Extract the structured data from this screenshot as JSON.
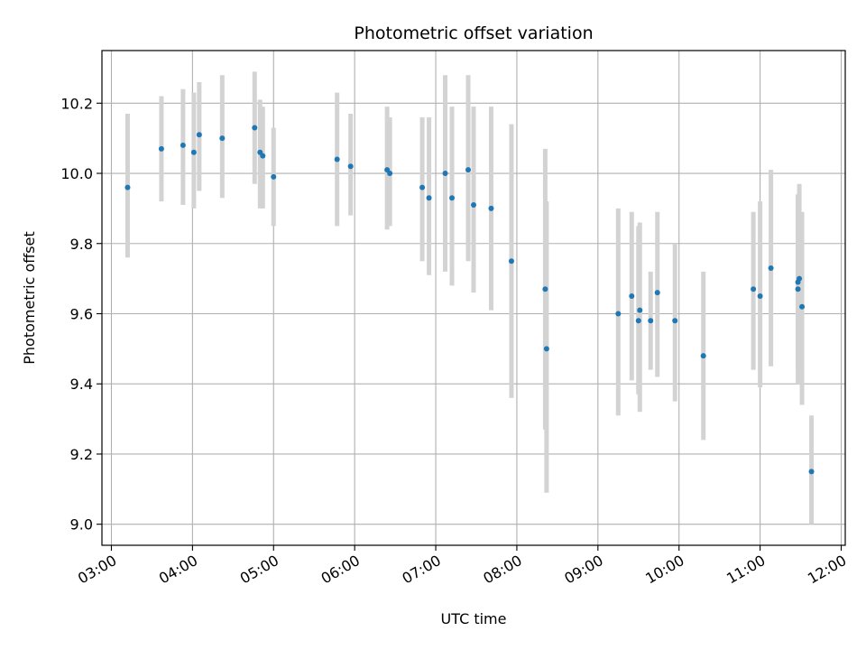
{
  "chart_data": {
    "type": "scatter",
    "title": "Photometric offset variation",
    "xlabel": "UTC time",
    "ylabel": "Photometric offset",
    "x_ticks": [
      "03:00",
      "04:00",
      "05:00",
      "06:00",
      "07:00",
      "08:00",
      "09:00",
      "10:00",
      "11:00",
      "12:00"
    ],
    "y_ticks": [
      "9.0",
      "9.2",
      "9.4",
      "9.6",
      "9.8",
      "10.0",
      "10.2"
    ],
    "xlim": [
      "02:53",
      "12:03"
    ],
    "ylim": [
      8.94,
      10.35
    ],
    "grid": true,
    "legend": "none",
    "colors": {
      "point": "#1f77b4",
      "errorbar": "#d3d3d3",
      "grid": "#b0b0b0"
    },
    "points": [
      {
        "t": "03:12",
        "y": 9.96,
        "lo": 9.76,
        "hi": 10.17
      },
      {
        "t": "03:37",
        "y": 10.07,
        "lo": 9.92,
        "hi": 10.22
      },
      {
        "t": "03:53",
        "y": 10.08,
        "lo": 9.91,
        "hi": 10.24
      },
      {
        "t": "04:01",
        "y": 10.06,
        "lo": 9.9,
        "hi": 10.23
      },
      {
        "t": "04:05",
        "y": 10.11,
        "lo": 9.95,
        "hi": 10.26
      },
      {
        "t": "04:22",
        "y": 10.1,
        "lo": 9.93,
        "hi": 10.28
      },
      {
        "t": "04:46",
        "y": 10.13,
        "lo": 9.97,
        "hi": 10.29
      },
      {
        "t": "04:50",
        "y": 10.06,
        "lo": 9.9,
        "hi": 10.21
      },
      {
        "t": "04:52",
        "y": 10.05,
        "lo": 9.9,
        "hi": 10.19
      },
      {
        "t": "05:00",
        "y": 9.99,
        "lo": 9.85,
        "hi": 10.13
      },
      {
        "t": "05:47",
        "y": 10.04,
        "lo": 9.85,
        "hi": 10.23
      },
      {
        "t": "05:57",
        "y": 10.02,
        "lo": 9.88,
        "hi": 10.17
      },
      {
        "t": "06:24",
        "y": 10.01,
        "lo": 9.84,
        "hi": 10.19
      },
      {
        "t": "06:26",
        "y": 10.0,
        "lo": 9.85,
        "hi": 10.16
      },
      {
        "t": "06:50",
        "y": 9.96,
        "lo": 9.75,
        "hi": 10.16
      },
      {
        "t": "06:55",
        "y": 9.93,
        "lo": 9.71,
        "hi": 10.16
      },
      {
        "t": "07:07",
        "y": 10.0,
        "lo": 9.72,
        "hi": 10.28
      },
      {
        "t": "07:12",
        "y": 9.93,
        "lo": 9.68,
        "hi": 10.19
      },
      {
        "t": "07:24",
        "y": 10.01,
        "lo": 9.75,
        "hi": 10.28
      },
      {
        "t": "07:28",
        "y": 9.91,
        "lo": 9.66,
        "hi": 10.19
      },
      {
        "t": "07:41",
        "y": 9.9,
        "lo": 9.61,
        "hi": 10.19
      },
      {
        "t": "07:56",
        "y": 9.75,
        "lo": 9.36,
        "hi": 10.14
      },
      {
        "t": "08:21",
        "y": 9.67,
        "lo": 9.27,
        "hi": 10.07
      },
      {
        "t": "08:22",
        "y": 9.5,
        "lo": 9.09,
        "hi": 9.92
      },
      {
        "t": "09:15",
        "y": 9.6,
        "lo": 9.31,
        "hi": 9.9
      },
      {
        "t": "09:25",
        "y": 9.65,
        "lo": 9.41,
        "hi": 9.89
      },
      {
        "t": "09:30",
        "y": 9.58,
        "lo": 9.37,
        "hi": 9.85
      },
      {
        "t": "09:31",
        "y": 9.61,
        "lo": 9.32,
        "hi": 9.86
      },
      {
        "t": "09:39",
        "y": 9.58,
        "lo": 9.44,
        "hi": 9.72
      },
      {
        "t": "09:44",
        "y": 9.66,
        "lo": 9.42,
        "hi": 9.89
      },
      {
        "t": "09:57",
        "y": 9.58,
        "lo": 9.35,
        "hi": 9.8
      },
      {
        "t": "10:18",
        "y": 9.48,
        "lo": 9.24,
        "hi": 9.72
      },
      {
        "t": "10:55",
        "y": 9.67,
        "lo": 9.44,
        "hi": 9.89
      },
      {
        "t": "11:00",
        "y": 9.65,
        "lo": 9.39,
        "hi": 9.92
      },
      {
        "t": "11:08",
        "y": 9.73,
        "lo": 9.45,
        "hi": 10.01
      },
      {
        "t": "11:28",
        "y": 9.67,
        "lo": 9.4,
        "hi": 9.94
      },
      {
        "t": "11:28",
        "y": 9.69,
        "lo": 9.44,
        "hi": 9.94
      },
      {
        "t": "11:29",
        "y": 9.7,
        "lo": 9.45,
        "hi": 9.97
      },
      {
        "t": "11:31",
        "y": 9.62,
        "lo": 9.34,
        "hi": 9.89
      },
      {
        "t": "11:38",
        "y": 9.15,
        "lo": 9.0,
        "hi": 9.31
      }
    ]
  }
}
